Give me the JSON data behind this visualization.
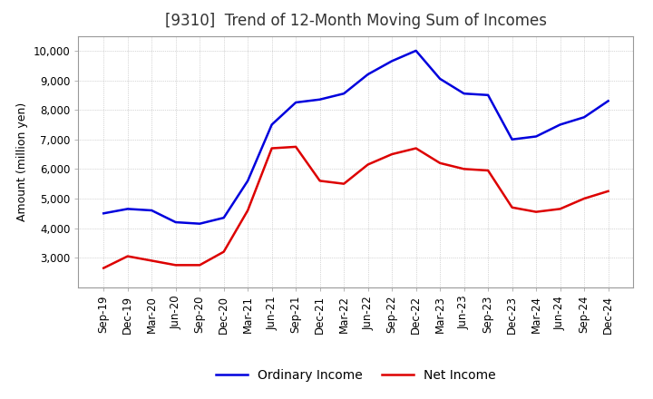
{
  "title": "[9310]  Trend of 12-Month Moving Sum of Incomes",
  "ylabel": "Amount (million yen)",
  "x_labels": [
    "Sep-19",
    "Dec-19",
    "Mar-20",
    "Jun-20",
    "Sep-20",
    "Dec-20",
    "Mar-21",
    "Jun-21",
    "Sep-21",
    "Dec-21",
    "Mar-22",
    "Jun-22",
    "Sep-22",
    "Dec-22",
    "Mar-23",
    "Jun-23",
    "Sep-23",
    "Dec-23",
    "Mar-24",
    "Jun-24",
    "Sep-24",
    "Dec-24"
  ],
  "ordinary_income": [
    4500,
    4650,
    4600,
    4200,
    4150,
    4350,
    5600,
    7500,
    8250,
    8350,
    8550,
    9200,
    9650,
    10000,
    9050,
    8550,
    8500,
    7000,
    7100,
    7500,
    7750,
    8300
  ],
  "net_income": [
    2650,
    3050,
    2900,
    2750,
    2750,
    3200,
    4600,
    6700,
    6750,
    5600,
    5500,
    6150,
    6500,
    6700,
    6200,
    6000,
    5950,
    4700,
    4550,
    4650,
    5000,
    5250
  ],
  "ordinary_color": "#0000dd",
  "net_color": "#dd0000",
  "background_color": "#ffffff",
  "grid_color": "#aaaaaa",
  "ylim": [
    2000,
    10500
  ],
  "yticks": [
    3000,
    4000,
    5000,
    6000,
    7000,
    8000,
    9000,
    10000
  ],
  "title_fontsize": 12,
  "label_fontsize": 9,
  "tick_fontsize": 8.5,
  "legend_fontsize": 10
}
